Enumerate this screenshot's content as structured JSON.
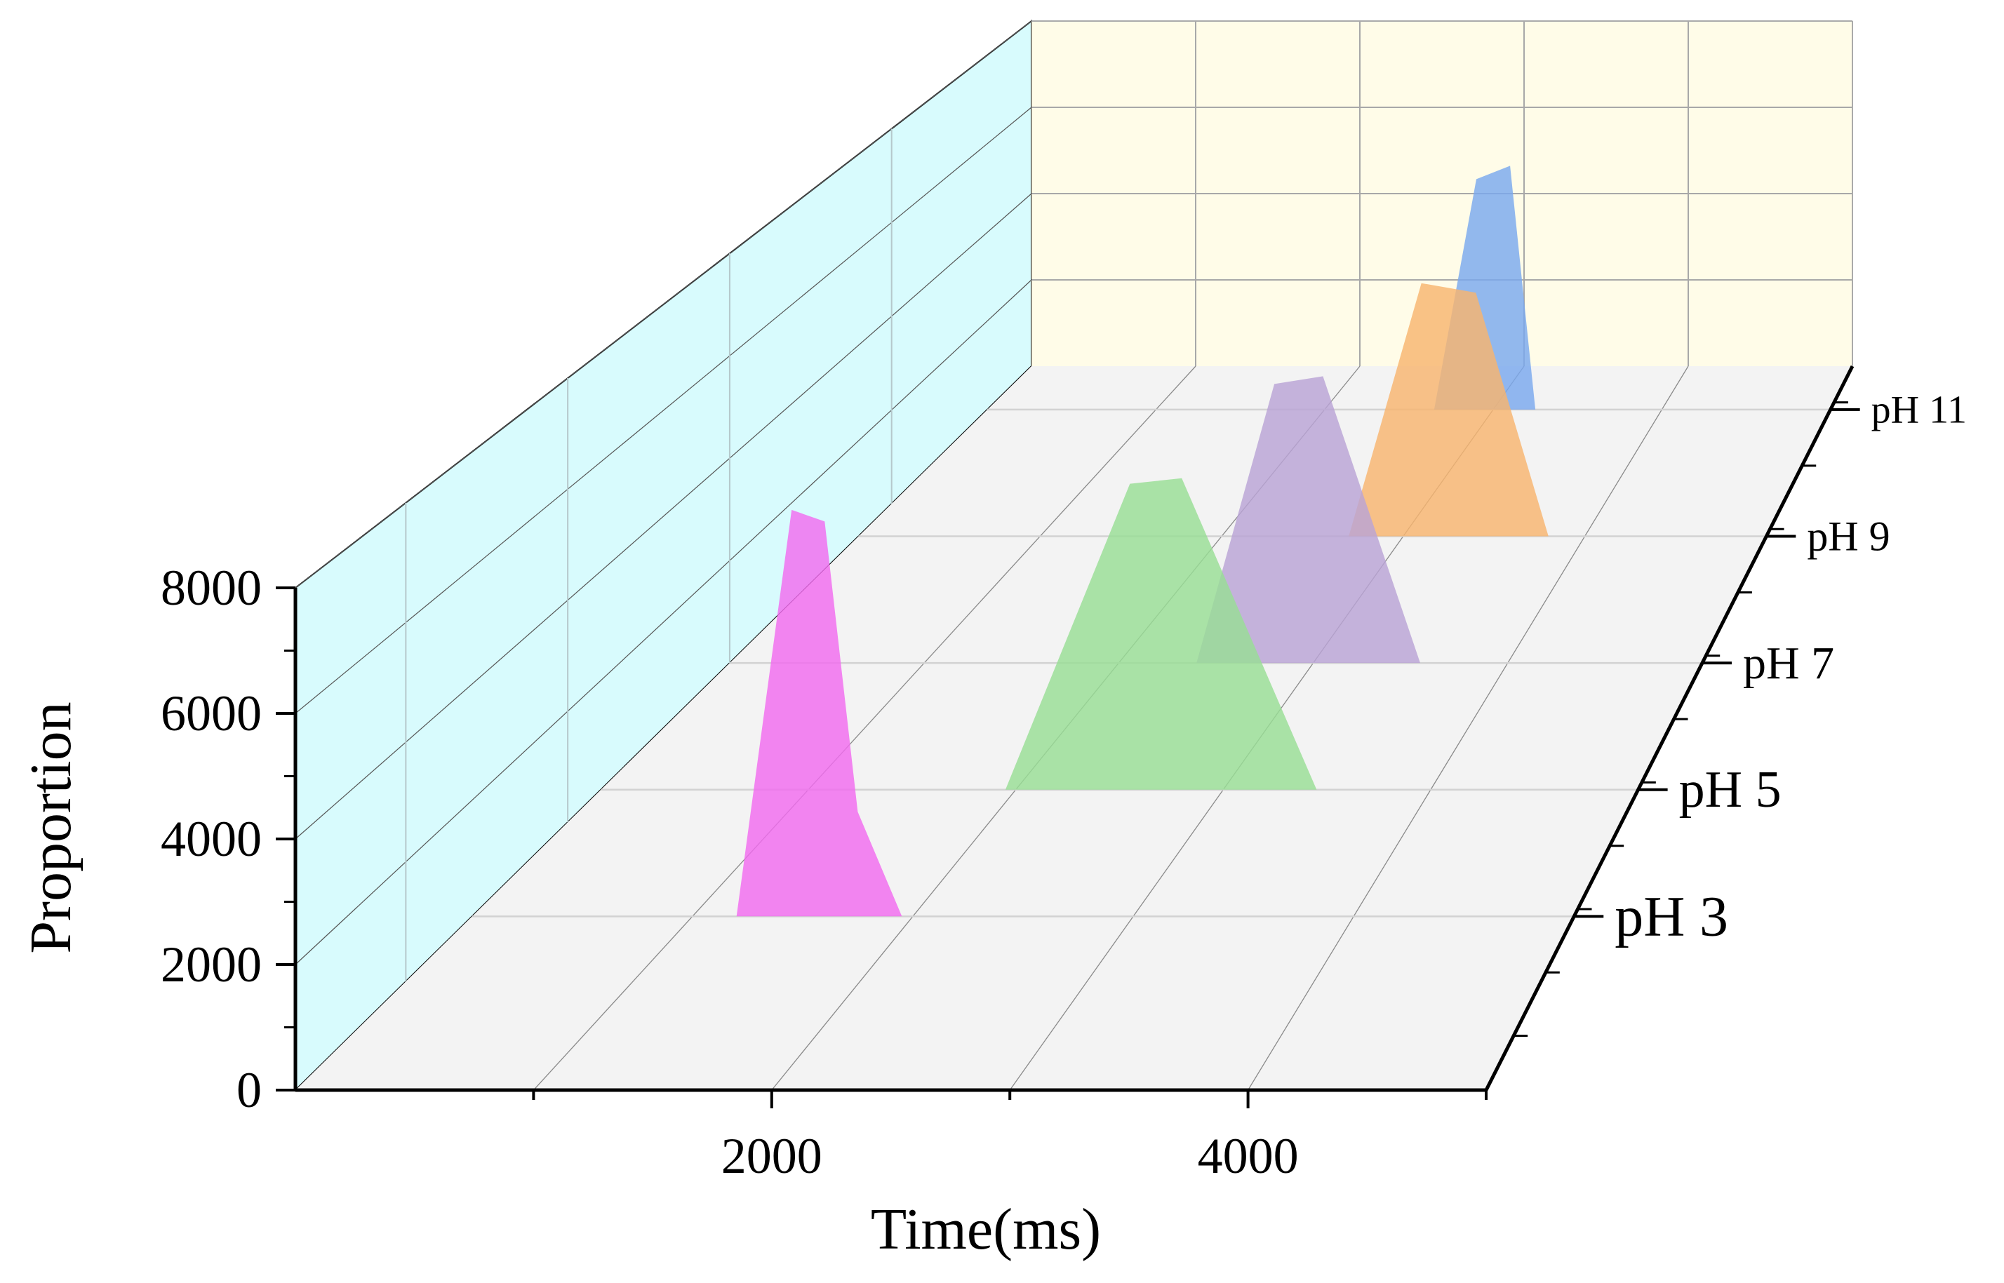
{
  "chart_data": {
    "type": "area",
    "variant": "3d-waterfall",
    "title": "",
    "xlabel": "Time(ms)",
    "ylabel": "Proportion",
    "xlim": [
      0,
      5000
    ],
    "ylim": [
      0,
      8000
    ],
    "x_ticks": [
      "2000",
      "4000"
    ],
    "y_ticks": [
      "0",
      "2000",
      "4000",
      "6000",
      "8000"
    ],
    "z_categories": [
      "pH 3",
      "pH 5",
      "pH 7",
      "pH 9",
      "pH 11"
    ],
    "grid": true,
    "legend": "none",
    "walls": {
      "back_color": "#fffce8",
      "side_color": "#d8fbfd",
      "floor_color": "#f3f3f3"
    },
    "series": [
      {
        "name": "pH 3",
        "color": "#f26bef",
        "x": [
          1200,
          1450,
          1600,
          1750,
          1950
        ],
        "y": [
          0,
          7000,
          6800,
          1800,
          0
        ]
      },
      {
        "name": "pH 5",
        "color": "#98de95",
        "x": [
          1950,
          2550,
          2800,
          3450
        ],
        "y": [
          0,
          5600,
          5700,
          0
        ]
      },
      {
        "name": "pH 7",
        "color": "#b9a3d5",
        "x": [
          2400,
          2800,
          3050,
          3550
        ],
        "y": [
          0,
          5450,
          5600,
          0
        ]
      },
      {
        "name": "pH 9",
        "color": "#f8b56f",
        "x": [
          2700,
          3100,
          3400,
          3800
        ],
        "y": [
          0,
          5300,
          5100,
          0
        ]
      },
      {
        "name": "pH 11",
        "color": "#7aa8ee",
        "x": [
          2650,
          2900,
          3100,
          3250
        ],
        "y": [
          0,
          5200,
          5500,
          0
        ]
      }
    ]
  }
}
